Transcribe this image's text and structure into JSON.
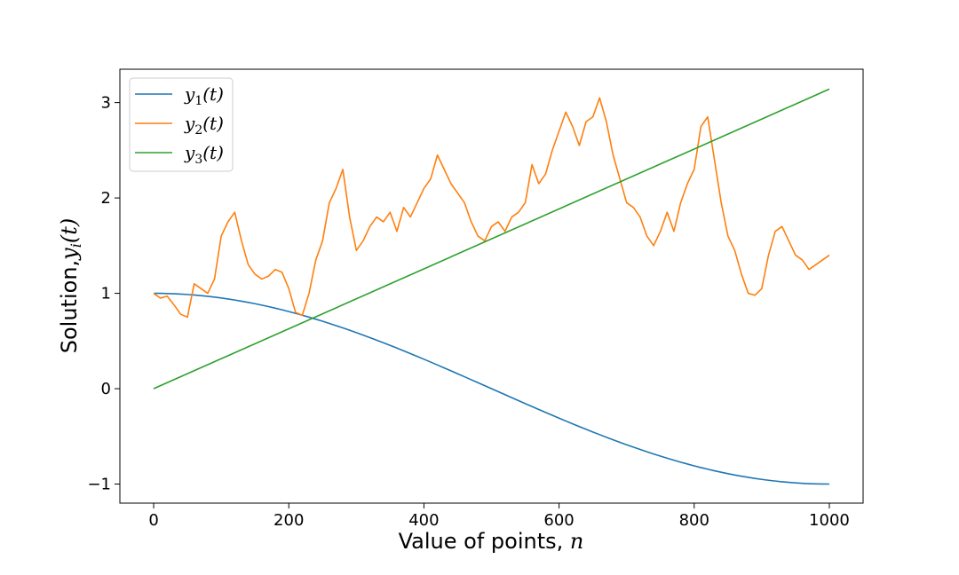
{
  "chart_data": {
    "type": "line",
    "xlabel": "Value of points, ",
    "xlabel_var": "n",
    "ylabel": "Solution,",
    "ylabel_var": "y",
    "ylabel_sub": "i",
    "ylabel_arg": "(t)",
    "xlim": [
      -50,
      1050
    ],
    "ylim": [
      -1.2,
      3.35
    ],
    "xticks": [
      0,
      200,
      400,
      600,
      800,
      1000
    ],
    "xtick_labels": [
      "0",
      "200",
      "400",
      "600",
      "800",
      "1000"
    ],
    "yticks": [
      -1,
      0,
      1,
      2,
      3
    ],
    "ytick_labels": [
      "−1",
      "0",
      "1",
      "2",
      "3"
    ],
    "legend_position": "upper-left",
    "series": [
      {
        "name": "y1(t)",
        "label_main": "y",
        "label_sub": "1",
        "label_arg": "(t)",
        "color": "#1f77b4",
        "function": "cos(pi*n/1000)",
        "x": [
          0,
          100,
          200,
          300,
          400,
          500,
          600,
          700,
          800,
          900,
          1000
        ],
        "values": [
          1.0,
          0.951,
          0.809,
          0.588,
          0.309,
          0.0,
          -0.309,
          -0.588,
          -0.809,
          -0.951,
          -1.0
        ]
      },
      {
        "name": "y2(t)",
        "label_main": "y",
        "label_sub": "2",
        "label_arg": "(t)",
        "color": "#ff7f0e",
        "x": [
          0,
          10,
          20,
          30,
          40,
          50,
          60,
          70,
          80,
          90,
          100,
          110,
          120,
          130,
          140,
          150,
          160,
          170,
          180,
          190,
          200,
          210,
          220,
          230,
          240,
          250,
          260,
          270,
          280,
          290,
          300,
          310,
          320,
          330,
          340,
          350,
          360,
          370,
          380,
          390,
          400,
          410,
          420,
          430,
          440,
          450,
          460,
          470,
          480,
          490,
          500,
          510,
          520,
          530,
          540,
          550,
          560,
          570,
          580,
          590,
          600,
          610,
          620,
          630,
          640,
          650,
          660,
          670,
          680,
          690,
          700,
          710,
          720,
          730,
          740,
          750,
          760,
          770,
          780,
          790,
          800,
          810,
          820,
          830,
          840,
          850,
          860,
          870,
          880,
          890,
          900,
          910,
          920,
          930,
          940,
          950,
          960,
          970,
          980,
          990,
          1000
        ],
        "values": [
          1.0,
          0.95,
          0.97,
          0.88,
          0.78,
          0.75,
          1.1,
          1.05,
          1.0,
          1.15,
          1.6,
          1.75,
          1.85,
          1.55,
          1.3,
          1.2,
          1.15,
          1.18,
          1.25,
          1.22,
          1.05,
          0.8,
          0.77,
          1.0,
          1.35,
          1.55,
          1.95,
          2.1,
          2.3,
          1.8,
          1.45,
          1.55,
          1.7,
          1.8,
          1.75,
          1.85,
          1.65,
          1.9,
          1.8,
          1.95,
          2.1,
          2.2,
          2.45,
          2.3,
          2.15,
          2.05,
          1.95,
          1.75,
          1.6,
          1.55,
          1.7,
          1.75,
          1.65,
          1.8,
          1.85,
          1.95,
          2.35,
          2.15,
          2.25,
          2.5,
          2.7,
          2.9,
          2.75,
          2.55,
          2.8,
          2.85,
          3.05,
          2.8,
          2.45,
          2.2,
          1.95,
          1.9,
          1.8,
          1.6,
          1.5,
          1.65,
          1.85,
          1.65,
          1.95,
          2.15,
          2.3,
          2.75,
          2.85,
          2.4,
          1.95,
          1.6,
          1.45,
          1.2,
          1.0,
          0.98,
          1.05,
          1.4,
          1.65,
          1.7,
          1.55,
          1.4,
          1.35,
          1.25,
          1.3,
          1.35,
          1.4
        ]
      },
      {
        "name": "y3(t)",
        "label_main": "y",
        "label_sub": "3",
        "label_arg": "(t)",
        "color": "#2ca02c",
        "function": "pi*n/1000",
        "x": [
          0,
          1000
        ],
        "values": [
          0.0,
          3.1416
        ]
      }
    ]
  }
}
